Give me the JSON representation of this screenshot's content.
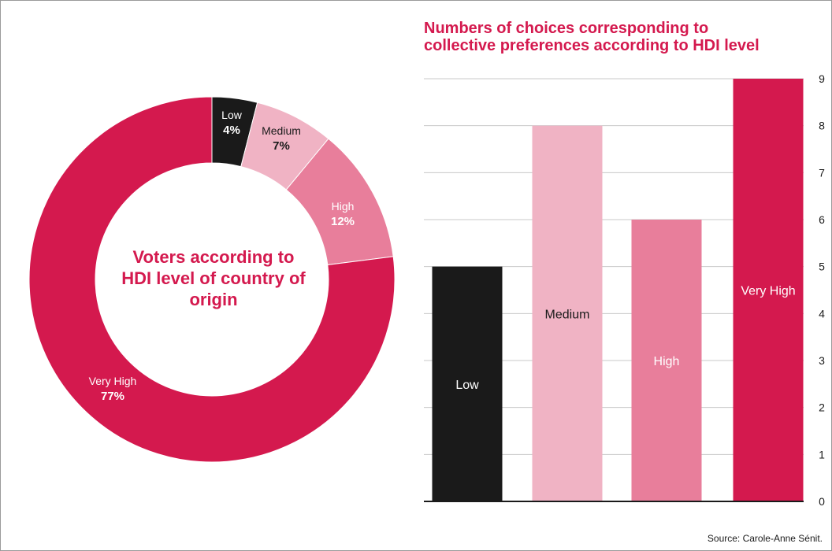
{
  "colors": {
    "accent": "#d4194e",
    "low": "#1a1a1a",
    "medium": "#f0b3c4",
    "high": "#e87e9b",
    "very_high": "#d4194e",
    "grid": "#c8c8c8",
    "axis": "#1a1a1a",
    "text": "#1a1a1a",
    "white": "#ffffff"
  },
  "chart_data": [
    {
      "type": "pie",
      "title_lines": [
        "Voters according to",
        "HDI level of country of",
        "origin"
      ],
      "slices": [
        {
          "label": "Low",
          "value": 4,
          "percent_label": "4%",
          "color": "#1a1a1a",
          "label_color": "#ffffff"
        },
        {
          "label": "Medium",
          "value": 7,
          "percent_label": "7%",
          "color": "#f0b3c4",
          "label_color": "#1a1a1a"
        },
        {
          "label": "High",
          "value": 12,
          "percent_label": "12%",
          "color": "#e87e9b",
          "label_color": "#ffffff"
        },
        {
          "label": "Very High",
          "value": 77,
          "percent_label": "77%",
          "color": "#d4194e",
          "label_color": "#ffffff"
        }
      ]
    },
    {
      "type": "bar",
      "title_lines": [
        "Numbers of choices corresponding to",
        "collective preferences according to HDI level"
      ],
      "categories": [
        "Low",
        "Medium",
        "High",
        "Very High"
      ],
      "values": [
        5,
        8,
        6,
        9
      ],
      "colors": [
        "#1a1a1a",
        "#f0b3c4",
        "#e87e9b",
        "#d4194e"
      ],
      "label_colors": [
        "#ffffff",
        "#1a1a1a",
        "#ffffff",
        "#ffffff"
      ],
      "ylim": [
        0,
        9
      ],
      "yticks": [
        0,
        1,
        2,
        3,
        4,
        5,
        6,
        7,
        8,
        9
      ],
      "grid": true,
      "y_axis_side": "right"
    }
  ],
  "source": "Source:  Carole-Anne Sénit."
}
